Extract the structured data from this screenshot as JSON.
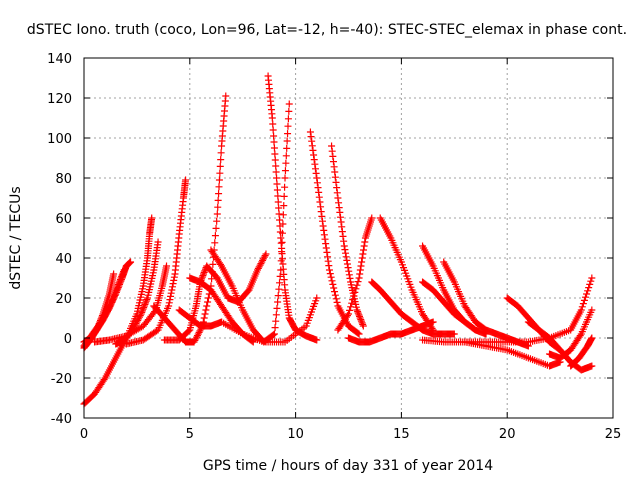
{
  "chart_data": {
    "type": "scatter",
    "title": "dSTEC Iono. truth (coco, Lon=96, Lat=-12, h=-40): STEC-STEC_elemax in phase cont.",
    "xlabel": "GPS time / hours of day 331 of year 2014",
    "ylabel": "dSTEC  / TECUs",
    "xlim": [
      0,
      25
    ],
    "ylim": [
      -40,
      140
    ],
    "xticks": [
      0,
      5,
      10,
      15,
      20,
      25
    ],
    "yticks": [
      -40,
      -20,
      0,
      20,
      40,
      60,
      80,
      100,
      120,
      140
    ],
    "grid": true,
    "marker": "+",
    "series_color": "#ff0000",
    "series": [
      {
        "x": [
          0.0,
          0.3,
          0.6,
          0.9,
          1.2,
          1.5,
          1.8,
          2.0,
          2.2
        ],
        "y": [
          -2,
          0,
          4,
          9,
          15,
          22,
          30,
          36,
          38
        ]
      },
      {
        "x": [
          0.0,
          0.4,
          0.8,
          1.2,
          1.6,
          1.9
        ],
        "y": [
          -4,
          2,
          8,
          16,
          26,
          34
        ]
      },
      {
        "x": [
          0.0,
          0.3,
          0.6,
          0.9,
          1.2,
          1.4
        ],
        "y": [
          -5,
          -1,
          4,
          12,
          22,
          32
        ]
      },
      {
        "x": [
          0.0,
          0.5,
          1.0,
          1.5,
          2.0,
          2.5,
          2.8,
          3.0,
          3.1,
          3.2
        ],
        "y": [
          -33,
          -28,
          -20,
          -10,
          0,
          12,
          26,
          40,
          52,
          60
        ]
      },
      {
        "x": [
          1.5,
          1.9,
          2.3,
          2.7,
          3.0,
          3.3,
          3.5
        ],
        "y": [
          -3,
          -1,
          4,
          12,
          20,
          34,
          48
        ]
      },
      {
        "x": [
          0.5,
          1.2,
          2.0,
          2.8,
          3.4,
          3.7,
          3.9
        ],
        "y": [
          -2,
          -1,
          1,
          6,
          14,
          26,
          36
        ]
      },
      {
        "x": [
          2.0,
          2.8,
          3.5,
          4.0,
          4.3,
          4.5,
          4.7,
          4.8
        ],
        "y": [
          -3,
          -1,
          4,
          16,
          32,
          52,
          70,
          79
        ]
      },
      {
        "x": [
          3.3,
          3.8,
          4.3,
          4.8,
          5.2,
          5.6,
          6.0,
          6.3,
          6.5,
          6.7
        ],
        "y": [
          16,
          10,
          4,
          -2,
          -2,
          6,
          26,
          62,
          96,
          121
        ]
      },
      {
        "x": [
          3.8,
          4.5,
          5.0,
          5.3,
          5.5,
          5.8,
          6.3,
          6.8,
          7.3,
          7.8,
          8.2,
          8.6
        ],
        "y": [
          -1,
          -1,
          4,
          16,
          28,
          36,
          30,
          20,
          18,
          24,
          34,
          42
        ]
      },
      {
        "x": [
          6.0,
          6.5,
          7.0,
          7.5,
          8.0,
          8.5,
          9.0,
          9.3,
          9.5,
          9.7
        ],
        "y": [
          44,
          36,
          26,
          14,
          4,
          -2,
          2,
          34,
          80,
          117
        ]
      },
      {
        "x": [
          5.0,
          5.5,
          6.0,
          6.5,
          7.0,
          7.5,
          8.0
        ],
        "y": [
          30,
          28,
          24,
          16,
          8,
          2,
          -2
        ]
      },
      {
        "x": [
          8.7,
          8.9,
          9.1,
          9.3,
          9.5,
          9.7,
          10.0,
          10.5,
          11.0
        ],
        "y": [
          131,
          110,
          80,
          50,
          24,
          10,
          4,
          1,
          -1
        ]
      },
      {
        "x": [
          4.5,
          5.0,
          5.5,
          6.0,
          6.5
        ],
        "y": [
          14,
          10,
          6,
          6,
          8
        ]
      },
      {
        "x": [
          6.5,
          7.5,
          8.5,
          9.5,
          10.5,
          11.0
        ],
        "y": [
          8,
          2,
          -2,
          -2,
          6,
          20
        ]
      },
      {
        "x": [
          10.7,
          11.0,
          11.3,
          11.6,
          12.0,
          12.5,
          13.0
        ],
        "y": [
          103,
          80,
          56,
          34,
          16,
          6,
          2
        ]
      },
      {
        "x": [
          11.7,
          12.0,
          12.3,
          12.6,
          12.9,
          13.2
        ],
        "y": [
          96,
          70,
          46,
          28,
          14,
          6
        ]
      },
      {
        "x": [
          12.0,
          12.5,
          13.0,
          13.3,
          13.6
        ],
        "y": [
          4,
          12,
          30,
          50,
          60
        ]
      },
      {
        "x": [
          14.0,
          14.5,
          15.0,
          15.5,
          16.0,
          16.5
        ],
        "y": [
          60,
          50,
          38,
          24,
          12,
          4
        ]
      },
      {
        "x": [
          12.5,
          13.0,
          13.5,
          14.0,
          14.5,
          15.0,
          15.5,
          16.0,
          16.5
        ],
        "y": [
          0,
          -2,
          -2,
          0,
          2,
          2,
          4,
          6,
          8
        ]
      },
      {
        "x": [
          13.6,
          14.0,
          14.5,
          15.0,
          15.5,
          16.0,
          16.5,
          17.0,
          17.5
        ],
        "y": [
          28,
          24,
          18,
          12,
          8,
          4,
          2,
          2,
          2
        ]
      },
      {
        "x": [
          16.0,
          16.5,
          17.0,
          17.5,
          18.0,
          18.5,
          19.0
        ],
        "y": [
          46,
          36,
          24,
          14,
          8,
          4,
          2
        ]
      },
      {
        "x": [
          17.0,
          17.5,
          18.0,
          18.5,
          19.0,
          19.5,
          20.0,
          20.5,
          21.0
        ],
        "y": [
          38,
          28,
          16,
          8,
          4,
          2,
          0,
          -2,
          -4
        ]
      },
      {
        "x": [
          16.0,
          16.5,
          17.0,
          17.5,
          18.0,
          18.5
        ],
        "y": [
          28,
          24,
          18,
          12,
          8,
          4
        ]
      },
      {
        "x": [
          16.0,
          17.0,
          18.0,
          19.0,
          20.0,
          21.0,
          22.0,
          22.5
        ],
        "y": [
          -1,
          -2,
          -2,
          -4,
          -6,
          -10,
          -14,
          -12
        ]
      },
      {
        "x": [
          18.0,
          19.0,
          20.0,
          21.0,
          22.0,
          23.0,
          23.5,
          24.0
        ],
        "y": [
          -2,
          -2,
          -2,
          -2,
          0,
          4,
          14,
          30
        ]
      },
      {
        "x": [
          20.0,
          20.5,
          21.0,
          21.5,
          22.0,
          22.5
        ],
        "y": [
          20,
          16,
          10,
          4,
          -2,
          -6
        ]
      },
      {
        "x": [
          21.0,
          21.5,
          22.0,
          22.5,
          23.0,
          23.5,
          24.0
        ],
        "y": [
          8,
          4,
          0,
          -6,
          -12,
          -16,
          -14
        ]
      },
      {
        "x": [
          22.0,
          22.5,
          23.0,
          23.5,
          24.0
        ],
        "y": [
          -8,
          -10,
          -6,
          2,
          14
        ]
      },
      {
        "x": [
          23.0,
          23.4,
          23.8,
          24.0
        ],
        "y": [
          -14,
          -10,
          -4,
          0
        ]
      }
    ]
  }
}
